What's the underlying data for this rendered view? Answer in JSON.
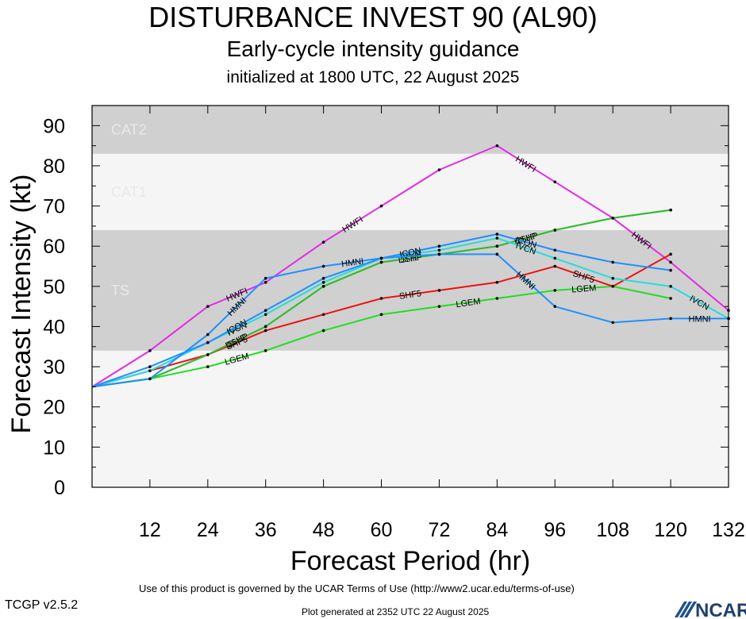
{
  "header": {
    "title": "DISTURBANCE INVEST 90 (AL90)",
    "subtitle": "Early-cycle intensity guidance",
    "initialized": "initialized at 1800 UTC, 22 August 2025"
  },
  "footer": {
    "terms": "Use of this product is governed by the UCAR Terms of Use (http://www2.ucar.edu/terms-of-use)",
    "version": "TCGP v2.5.2",
    "generated": "Plot generated at 2352 UTC   22 August 2025",
    "logo_text": "NCAR"
  },
  "chart_data": {
    "type": "line",
    "xlabel": "Forecast Period (hr)",
    "ylabel": "Forecast Intensity (kt)",
    "xlim": [
      0,
      132
    ],
    "ylim": [
      0,
      95
    ],
    "xticks": [
      12,
      24,
      36,
      48,
      60,
      72,
      84,
      96,
      108,
      120,
      132
    ],
    "yticks": [
      0,
      10,
      20,
      30,
      40,
      50,
      60,
      70,
      80,
      90
    ],
    "bands": [
      {
        "label": "TS",
        "from": 34,
        "to": 64,
        "color": "#d0d0d0"
      },
      {
        "label": "CAT1",
        "from": 64,
        "to": 83,
        "color": "#f5f5f5"
      },
      {
        "label": "CAT2",
        "from": 83,
        "to": 95,
        "color": "#d0d0d0"
      }
    ],
    "below_band_color": "#f5f5f5",
    "series": [
      {
        "name": "HWFI",
        "color": "#e62ae6",
        "label_at": [
          24,
          48,
          84,
          108
        ],
        "points": [
          [
            0,
            25
          ],
          [
            12,
            34
          ],
          [
            24,
            45
          ],
          [
            36,
            51
          ],
          [
            48,
            61
          ],
          [
            60,
            70
          ],
          [
            72,
            79
          ],
          [
            84,
            85
          ],
          [
            96,
            76
          ],
          [
            108,
            67
          ],
          [
            120,
            56
          ],
          [
            132,
            44
          ]
        ]
      },
      {
        "name": "LGEM",
        "color": "#22dd22",
        "label_at": [
          24,
          72,
          96
        ],
        "points": [
          [
            0,
            25
          ],
          [
            12,
            27
          ],
          [
            24,
            30
          ],
          [
            36,
            34
          ],
          [
            48,
            39
          ],
          [
            60,
            43
          ],
          [
            72,
            45
          ],
          [
            84,
            47
          ],
          [
            96,
            49
          ],
          [
            108,
            50
          ],
          [
            120,
            47
          ]
        ]
      },
      {
        "name": "SHF5",
        "color": "#ee1111",
        "label_at": [
          24,
          60,
          96
        ],
        "points": [
          [
            0,
            25
          ],
          [
            12,
            29
          ],
          [
            24,
            33
          ],
          [
            36,
            39
          ],
          [
            48,
            43
          ],
          [
            60,
            47
          ],
          [
            72,
            49
          ],
          [
            84,
            51
          ],
          [
            96,
            55
          ],
          [
            108,
            50
          ],
          [
            120,
            58
          ]
        ]
      },
      {
        "name": "SHIP",
        "color": "#33bb33",
        "label_at": [
          24,
          60,
          84
        ],
        "points": [
          [
            0,
            25
          ],
          [
            12,
            27
          ],
          [
            24,
            33
          ],
          [
            36,
            40
          ],
          [
            48,
            50
          ],
          [
            60,
            56
          ],
          [
            72,
            58
          ],
          [
            84,
            60
          ],
          [
            96,
            64
          ],
          [
            108,
            67
          ],
          [
            120,
            69
          ]
        ]
      },
      {
        "name": "DSHP",
        "color": "#33bb33",
        "label_at": [
          24,
          60,
          84
        ],
        "points": [
          [
            0,
            25
          ],
          [
            12,
            27
          ],
          [
            24,
            33
          ],
          [
            36,
            40
          ],
          [
            48,
            50
          ],
          [
            60,
            56
          ],
          [
            72,
            58
          ],
          [
            84,
            60
          ],
          [
            96,
            64
          ],
          [
            108,
            67
          ],
          [
            120,
            69
          ]
        ]
      },
      {
        "name": "IVCN",
        "color": "#22dddd",
        "label_at": [
          24,
          60,
          84,
          120
        ],
        "points": [
          [
            0,
            25
          ],
          [
            12,
            29
          ],
          [
            24,
            36
          ],
          [
            36,
            43
          ],
          [
            48,
            51
          ],
          [
            60,
            57
          ],
          [
            72,
            59
          ],
          [
            84,
            62
          ],
          [
            96,
            57
          ],
          [
            108,
            52
          ],
          [
            120,
            50
          ],
          [
            132,
            42
          ]
        ]
      },
      {
        "name": "ICON",
        "color": "#1e90ff",
        "label_at": [
          24,
          60,
          84
        ],
        "points": [
          [
            0,
            25
          ],
          [
            12,
            30
          ],
          [
            24,
            36
          ],
          [
            36,
            44
          ],
          [
            48,
            52
          ],
          [
            60,
            57
          ],
          [
            72,
            60
          ],
          [
            84,
            63
          ],
          [
            96,
            59
          ],
          [
            108,
            56
          ],
          [
            120,
            54
          ]
        ]
      },
      {
        "name": "HMNI",
        "color": "#1e90ff",
        "label_at": [
          24,
          48,
          84,
          120
        ],
        "points": [
          [
            0,
            25
          ],
          [
            12,
            27
          ],
          [
            24,
            38
          ],
          [
            36,
            52
          ],
          [
            48,
            55
          ],
          [
            60,
            57
          ],
          [
            72,
            58
          ],
          [
            84,
            58
          ],
          [
            96,
            45
          ],
          [
            108,
            41
          ],
          [
            120,
            42
          ],
          [
            132,
            42
          ]
        ]
      }
    ]
  }
}
